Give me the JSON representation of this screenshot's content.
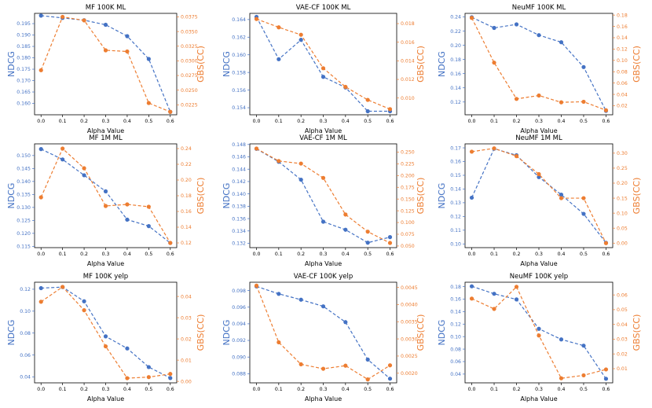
{
  "colors": {
    "ndcg": "#4472c4",
    "gbs": "#ed7d31"
  },
  "chart_data": [
    {
      "type": "line",
      "title": "MF 100K ML",
      "xlabel": "Alpha Value",
      "ylabel_left": "NDCG",
      "ylabel_right": "GBS(CC)",
      "x": [
        0.0,
        0.1,
        0.2,
        0.3,
        0.4,
        0.5,
        0.6
      ],
      "xticks": [
        "0.0",
        "0.1",
        "0.2",
        "0.3",
        "0.4",
        "0.5",
        "0.6"
      ],
      "series": [
        {
          "name": "NDCG",
          "axis": "left",
          "values": [
            0.1985,
            0.1975,
            0.1965,
            0.1945,
            0.1895,
            0.1795,
            0.1563
          ]
        },
        {
          "name": "GBS(CC)",
          "axis": "right",
          "values": [
            0.0284,
            0.0375,
            0.0369,
            0.0318,
            0.0316,
            0.0228,
            0.0213
          ]
        }
      ],
      "ylim_left": [
        0.155,
        0.1995
      ],
      "yticks_left": [
        "0.160",
        "0.165",
        "0.170",
        "0.175",
        "0.180",
        "0.185",
        "0.190",
        "0.195"
      ],
      "ylim_right": [
        0.0208,
        0.0381
      ],
      "yticks_right": [
        "0.0225",
        "0.0250",
        "0.0275",
        "0.0300",
        "0.0325",
        "0.0350",
        "0.0375"
      ]
    },
    {
      "type": "line",
      "title": "VAE-CF 100K ML",
      "xlabel": "Alpha Value",
      "ylabel_left": "NDCG",
      "ylabel_right": "GBS(CC)",
      "x": [
        0.0,
        0.1,
        0.2,
        0.3,
        0.4,
        0.5,
        0.6
      ],
      "xticks": [
        "0.0",
        "0.1",
        "0.2",
        "0.3",
        "0.4",
        "0.5",
        "0.6"
      ],
      "series": [
        {
          "name": "NDCG",
          "axis": "left",
          "values": [
            0.1643,
            0.1595,
            0.1617,
            0.1575,
            0.1563,
            0.1536,
            0.1536
          ]
        },
        {
          "name": "GBS(CC)",
          "axis": "right",
          "values": [
            0.0185,
            0.0176,
            0.0168,
            0.0132,
            0.0112,
            0.0098,
            0.0088
          ]
        }
      ],
      "ylim_left": [
        0.1532,
        0.1647
      ],
      "yticks_left": [
        "0.154",
        "0.156",
        "0.158",
        "0.160",
        "0.162",
        "0.164"
      ],
      "ylim_right": [
        0.0082,
        0.0191
      ],
      "yticks_right": [
        "0.010",
        "0.012",
        "0.014",
        "0.016",
        "0.018"
      ]
    },
    {
      "type": "line",
      "title": "NeuMF 100K ML",
      "xlabel": "Alpha Value",
      "ylabel_left": "NDCG",
      "ylabel_right": "GBS(CC)",
      "x": [
        0.0,
        0.1,
        0.2,
        0.3,
        0.4,
        0.5,
        0.6
      ],
      "xticks": [
        "0.0",
        "0.1",
        "0.2",
        "0.3",
        "0.4",
        "0.5",
        "0.6"
      ],
      "series": [
        {
          "name": "NDCG",
          "axis": "left",
          "values": [
            0.2395,
            0.2245,
            0.2295,
            0.2143,
            0.2043,
            0.1693,
            0.1075
          ]
        },
        {
          "name": "GBS(CC)",
          "axis": "right",
          "values": [
            0.175,
            0.096,
            0.032,
            0.038,
            0.026,
            0.027,
            0.012
          ]
        }
      ],
      "ylim_left": [
        0.102,
        0.245
      ],
      "yticks_left": [
        "0.12",
        "0.14",
        "0.16",
        "0.18",
        "0.20",
        "0.22",
        "0.24"
      ],
      "ylim_right": [
        0.004,
        0.183
      ],
      "yticks_right": [
        "0.02",
        "0.04",
        "0.06",
        "0.08",
        "0.10",
        "0.12",
        "0.14",
        "0.16",
        "0.18"
      ]
    },
    {
      "type": "line",
      "title": "MF 1M ML",
      "xlabel": "Alpha Value",
      "ylabel_left": "NDCG",
      "ylabel_right": "GBS(CC)",
      "x": [
        0.0,
        0.1,
        0.2,
        0.3,
        0.4,
        0.5,
        0.6
      ],
      "xticks": [
        "0.0",
        "0.1",
        "0.2",
        "0.3",
        "0.4",
        "0.5",
        "0.6"
      ],
      "series": [
        {
          "name": "NDCG",
          "axis": "left",
          "values": [
            0.1525,
            0.1485,
            0.1424,
            0.1362,
            0.1253,
            0.1228,
            0.1163
          ]
        },
        {
          "name": "GBS(CC)",
          "axis": "right",
          "values": [
            0.178,
            0.24,
            0.215,
            0.167,
            0.169,
            0.166,
            0.12
          ]
        }
      ],
      "ylim_left": [
        0.1145,
        0.1545
      ],
      "yticks_left": [
        "0.115",
        "0.120",
        "0.125",
        "0.130",
        "0.135",
        "0.140",
        "0.145",
        "0.150"
      ],
      "ylim_right": [
        0.114,
        0.246
      ],
      "yticks_right": [
        "0.12",
        "0.14",
        "0.16",
        "0.18",
        "0.20",
        "0.22",
        "0.24"
      ]
    },
    {
      "type": "line",
      "title": "VAE-CF 1M ML",
      "xlabel": "Alpha Value",
      "ylabel_left": "NDCG",
      "ylabel_right": "GBS(CC)",
      "x": [
        0.0,
        0.1,
        0.2,
        0.3,
        0.4,
        0.5,
        0.6
      ],
      "xticks": [
        "0.0",
        "0.1",
        "0.2",
        "0.3",
        "0.4",
        "0.5",
        "0.6"
      ],
      "series": [
        {
          "name": "NDCG",
          "axis": "left",
          "values": [
            0.1473,
            0.1452,
            0.1423,
            0.1355,
            0.1342,
            0.1321,
            0.133
          ]
        },
        {
          "name": "GBS(CC)",
          "axis": "right",
          "values": [
            0.2575,
            0.231,
            0.2255,
            0.195,
            0.117,
            0.0805,
            0.0565
          ]
        }
      ],
      "ylim_left": [
        0.1313,
        0.1481
      ],
      "yticks_left": [
        "0.132",
        "0.134",
        "0.136",
        "0.138",
        "0.140",
        "0.142",
        "0.144",
        "0.146",
        "0.148"
      ],
      "ylim_right": [
        0.0465,
        0.2675
      ],
      "yticks_right": [
        "0.050",
        "0.075",
        "0.100",
        "0.125",
        "0.150",
        "0.175",
        "0.200",
        "0.225",
        "0.250"
      ]
    },
    {
      "type": "line",
      "title": "NeuMF 1M ML",
      "xlabel": "Alpha Value",
      "ylabel_left": "NDCG",
      "ylabel_right": "GBS(CC)",
      "x": [
        0.0,
        0.1,
        0.2,
        0.3,
        0.4,
        0.5,
        0.6
      ],
      "xticks": [
        "0.0",
        "0.1",
        "0.2",
        "0.3",
        "0.4",
        "0.5",
        "0.6"
      ],
      "series": [
        {
          "name": "NDCG",
          "axis": "left",
          "values": [
            0.1337,
            0.1694,
            0.1646,
            0.1487,
            0.1359,
            0.1219,
            0.1008
          ]
        },
        {
          "name": "GBS(CC)",
          "axis": "right",
          "values": [
            0.305,
            0.316,
            0.29,
            0.23,
            0.15,
            0.15,
            0.0
          ]
        }
      ],
      "ylim_left": [
        0.0973,
        0.1729
      ],
      "yticks_left": [
        "0.10",
        "0.11",
        "0.12",
        "0.13",
        "0.14",
        "0.15",
        "0.16",
        "0.17"
      ],
      "ylim_right": [
        -0.015,
        0.331
      ],
      "yticks_right": [
        "0.00",
        "0.05",
        "0.10",
        "0.15",
        "0.20",
        "0.25",
        "0.30"
      ]
    },
    {
      "type": "line",
      "title": "MF 100K yelp",
      "xlabel": "Alpha Value",
      "ylabel_left": "NDCG",
      "ylabel_right": "GBS(CC)",
      "x": [
        0.0,
        0.1,
        0.2,
        0.3,
        0.4,
        0.5,
        0.6
      ],
      "xticks": [
        "0.0",
        "0.1",
        "0.2",
        "0.3",
        "0.4",
        "0.5",
        "0.6"
      ],
      "series": [
        {
          "name": "NDCG",
          "axis": "left",
          "values": [
            0.121,
            0.122,
            0.109,
            0.077,
            0.066,
            0.049,
            0.039
          ]
        },
        {
          "name": "GBS(CC)",
          "axis": "right",
          "values": [
            0.0375,
            0.0445,
            0.0335,
            0.0165,
            0.0015,
            0.002,
            0.0035
          ]
        }
      ],
      "ylim_left": [
        0.0346,
        0.1264
      ],
      "yticks_left": [
        "0.04",
        "0.06",
        "0.08",
        "0.10",
        "0.12"
      ],
      "ylim_right": [
        -0.0007,
        0.0467
      ],
      "yticks_right": [
        "0.00",
        "0.01",
        "0.02",
        "0.03",
        "0.04"
      ]
    },
    {
      "type": "line",
      "title": "VAE-CF 100K yelp",
      "xlabel": "Alpha Value",
      "ylabel_left": "NDCG",
      "ylabel_right": "GBS(CC)",
      "x": [
        0.0,
        0.1,
        0.2,
        0.3,
        0.4,
        0.5,
        0.6
      ],
      "xticks": [
        "0.0",
        "0.1",
        "0.2",
        "0.3",
        "0.4",
        "0.5",
        "0.6"
      ],
      "series": [
        {
          "name": "NDCG",
          "axis": "left",
          "values": [
            0.0985,
            0.0976,
            0.0969,
            0.0961,
            0.0942,
            0.0897,
            0.0874
          ]
        },
        {
          "name": "GBS(CC)",
          "axis": "right",
          "values": [
            0.00455,
            0.0029,
            0.00226,
            0.00213,
            0.00222,
            0.00182,
            0.00223
          ]
        }
      ],
      "ylim_left": [
        0.0869,
        0.099
      ],
      "yticks_left": [
        "0.088",
        "0.090",
        "0.092",
        "0.094",
        "0.096",
        "0.098"
      ],
      "ylim_right": [
        0.00172,
        0.00465
      ],
      "yticks_right": [
        "0.0020",
        "0.0025",
        "0.0030",
        "0.0035",
        "0.0040",
        "0.0045"
      ]
    },
    {
      "type": "line",
      "title": "NeuMF 100K yelp",
      "xlabel": "Alpha Value",
      "ylabel_left": "NDCG",
      "ylabel_right": "GBS(CC)",
      "x": [
        0.0,
        0.1,
        0.2,
        0.3,
        0.4,
        0.5,
        0.6
      ],
      "xticks": [
        "0.0",
        "0.1",
        "0.2",
        "0.3",
        "0.4",
        "0.5",
        "0.6"
      ],
      "series": [
        {
          "name": "NDCG",
          "axis": "left",
          "values": [
            0.1805,
            0.1685,
            0.1595,
            0.1125,
            0.0955,
            0.0855,
            0.0325
          ]
        },
        {
          "name": "GBS(CC)",
          "axis": "right",
          "values": [
            0.0575,
            0.0505,
            0.0655,
            0.0325,
            0.0035,
            0.0055,
            0.0095
          ]
        }
      ],
      "ylim_left": [
        0.026,
        0.187
      ],
      "yticks_left": [
        "0.04",
        "0.06",
        "0.08",
        "0.10",
        "0.12",
        "0.14",
        "0.16",
        "0.18"
      ],
      "ylim_right": [
        0.0004,
        0.0686
      ],
      "yticks_right": [
        "0.01",
        "0.02",
        "0.03",
        "0.04",
        "0.05",
        "0.06"
      ]
    }
  ]
}
